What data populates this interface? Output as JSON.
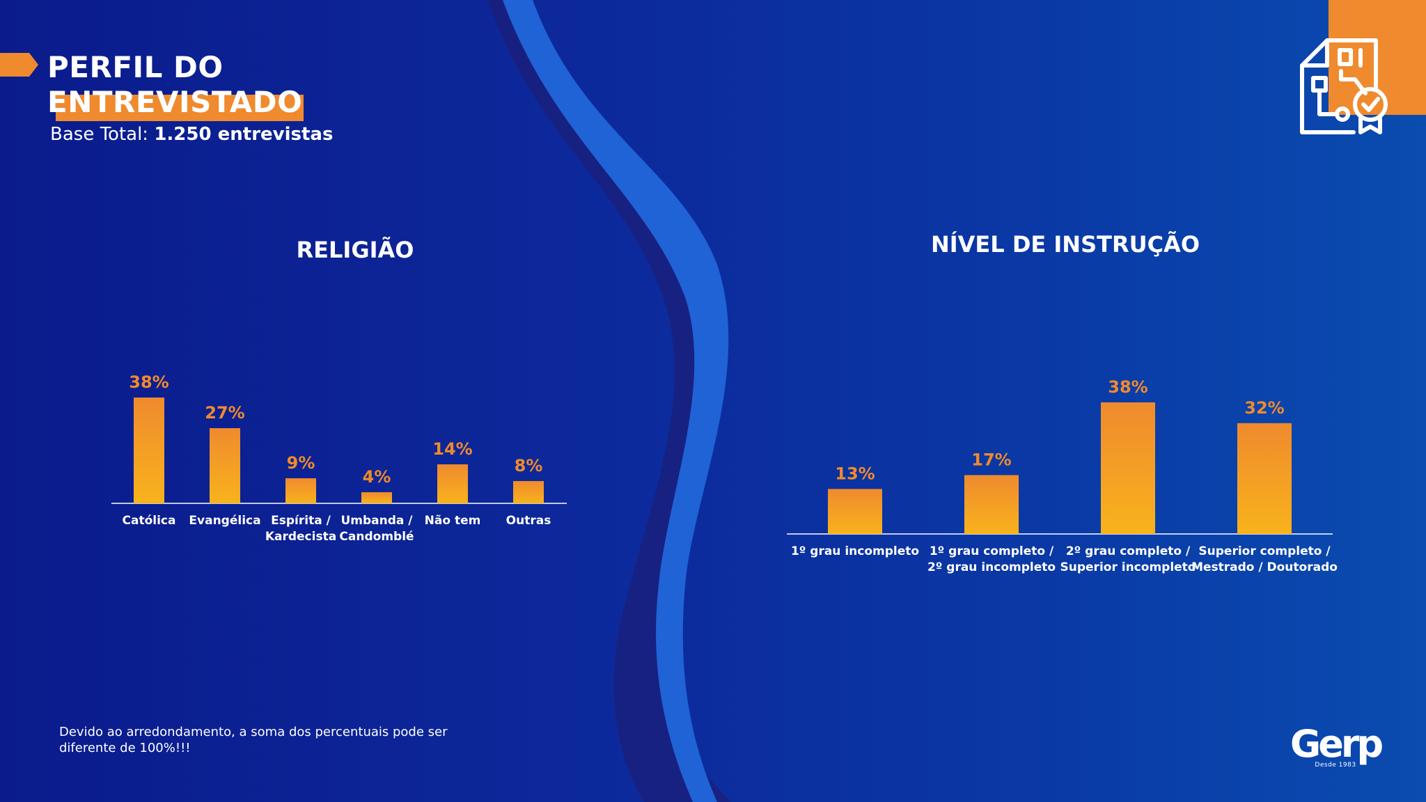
{
  "header": {
    "title_line1": "PERFIL DO",
    "title_line2": "ENTREVISTADO",
    "base_label": "Base Total:",
    "base_value": "1.250 entrevistas"
  },
  "footer": {
    "note": "Devido ao arredondamento, a soma dos percentuais pode ser diferente de 100%!!!",
    "logo_text": "Gerp",
    "logo_subtext": "Desde 1983"
  },
  "colors": {
    "background": "#0b1b8c",
    "accent": "#ef8a2e",
    "bar_top": "#ef8a2e",
    "bar_bottom": "#f8b31c",
    "value_label": "#ef8a2e"
  },
  "icons": {
    "top_right": "document-certificate-icon"
  },
  "chart_data": [
    {
      "type": "bar",
      "title": "RELIGIÃO",
      "categories": [
        "Católica",
        "Evangélica",
        "Espírita / Kardecista",
        "Umbanda / Candomblé",
        "Não tem",
        "Outras"
      ],
      "category_lines": [
        [
          "Católica"
        ],
        [
          "Evangélica"
        ],
        [
          "Espírita /",
          "Kardecista"
        ],
        [
          "Umbanda /",
          "Candomblé"
        ],
        [
          "Não tem"
        ],
        [
          "Outras"
        ]
      ],
      "values": [
        38,
        27,
        9,
        4,
        14,
        8
      ],
      "value_labels": [
        "38%",
        "27%",
        "9%",
        "4%",
        "14%",
        "8%"
      ],
      "unit": "%",
      "ylim": [
        0,
        38
      ],
      "grid": false,
      "legend": "none"
    },
    {
      "type": "bar",
      "title": "NÍVEL DE INSTRUÇÃO",
      "categories": [
        "1º grau incompleto",
        "1º grau completo / 2º grau incompleto",
        "2º grau completo / Superior incompleto",
        "Superior completo / Mestrado / Doutorado"
      ],
      "category_lines": [
        [
          "1º grau incompleto"
        ],
        [
          "1º grau completo /",
          "2º grau incompleto"
        ],
        [
          "2º grau completo /",
          "Superior incompleto"
        ],
        [
          "Superior completo /",
          "Mestrado / Doutorado"
        ]
      ],
      "values": [
        13,
        17,
        38,
        32
      ],
      "value_labels": [
        "13%",
        "17%",
        "38%",
        "32%"
      ],
      "unit": "%",
      "ylim": [
        0,
        38
      ],
      "grid": false,
      "legend": "none"
    }
  ]
}
